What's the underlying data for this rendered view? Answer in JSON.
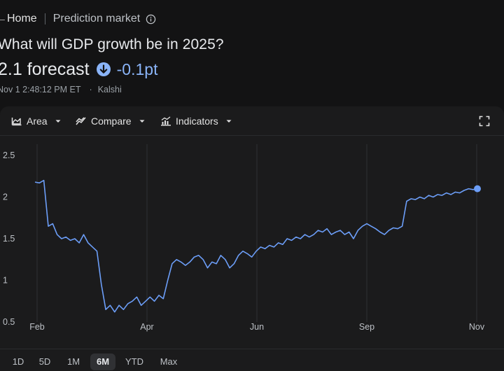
{
  "breadcrumb": {
    "home": "Home",
    "section": "Prediction market"
  },
  "header": {
    "title": "What will GDP growth be in 2025?",
    "value": "2.1 forecast",
    "change": "-0.1pt",
    "timestamp": "Nov 1 2:48:12 PM ET",
    "source": "Kalshi"
  },
  "toolbar": {
    "area_label": "Area",
    "compare_label": "Compare",
    "indicators_label": "Indicators"
  },
  "ranges": [
    {
      "label": "1D",
      "active": false
    },
    {
      "label": "5D",
      "active": false
    },
    {
      "label": "1M",
      "active": false
    },
    {
      "label": "6M",
      "active": true
    },
    {
      "label": "YTD",
      "active": false
    },
    {
      "label": "Max",
      "active": false
    }
  ],
  "colors": {
    "line": "#6c9ef8",
    "change": "#8ab4f8",
    "background": "#131314",
    "card": "#1b1b1c"
  },
  "chart_data": {
    "type": "line",
    "ylim": [
      0.5,
      2.5
    ],
    "yticks": [
      0.5,
      1,
      1.5,
      2,
      2.5
    ],
    "ytick_labels": [
      "0.5",
      "1",
      "1.5",
      "2",
      "2.5"
    ],
    "xticks": [
      "Feb",
      "Apr",
      "Jun",
      "Sep",
      "Nov"
    ],
    "grid": "vertical",
    "series": [
      {
        "x": [
          0,
          1,
          2,
          3,
          4,
          5,
          6,
          7,
          8,
          9,
          10,
          11,
          12,
          13,
          14,
          15,
          16,
          17,
          18,
          19,
          20,
          21,
          22,
          23,
          24,
          25,
          26,
          27,
          28,
          29,
          30,
          31,
          32,
          33,
          34,
          35,
          36,
          37,
          38,
          39,
          40,
          41,
          42,
          43,
          44,
          45,
          46,
          47,
          48,
          49,
          50,
          51,
          52,
          53,
          54,
          55,
          56,
          57,
          58,
          59,
          60,
          61,
          62,
          63,
          64,
          65,
          66,
          67,
          68,
          69,
          70,
          71,
          72,
          73,
          74,
          75,
          76,
          77,
          78,
          79,
          80,
          81,
          82,
          83,
          84,
          85,
          86,
          87,
          88,
          89,
          90,
          91,
          92,
          93,
          94,
          95,
          96,
          97,
          98,
          99,
          100
        ],
        "y": [
          2.18,
          2.17,
          2.2,
          1.65,
          1.68,
          1.55,
          1.5,
          1.52,
          1.48,
          1.5,
          1.45,
          1.55,
          1.45,
          1.4,
          1.35,
          0.95,
          0.65,
          0.7,
          0.62,
          0.7,
          0.65,
          0.72,
          0.75,
          0.8,
          0.7,
          0.75,
          0.8,
          0.75,
          0.82,
          0.78,
          1.0,
          1.2,
          1.25,
          1.22,
          1.18,
          1.22,
          1.28,
          1.3,
          1.25,
          1.15,
          1.22,
          1.2,
          1.3,
          1.25,
          1.15,
          1.2,
          1.3,
          1.35,
          1.32,
          1.28,
          1.35,
          1.4,
          1.38,
          1.42,
          1.4,
          1.45,
          1.43,
          1.5,
          1.48,
          1.52,
          1.5,
          1.55,
          1.52,
          1.55,
          1.6,
          1.58,
          1.62,
          1.55,
          1.58,
          1.6,
          1.55,
          1.58,
          1.5,
          1.6,
          1.65,
          1.68,
          1.65,
          1.62,
          1.58,
          1.55,
          1.6,
          1.63,
          1.62,
          1.65,
          1.95,
          1.98,
          1.97,
          2.0,
          1.98,
          2.02,
          2.0,
          2.03,
          2.02,
          2.05,
          2.03,
          2.06,
          2.05,
          2.08,
          2.1,
          2.09,
          2.1
        ]
      }
    ]
  }
}
